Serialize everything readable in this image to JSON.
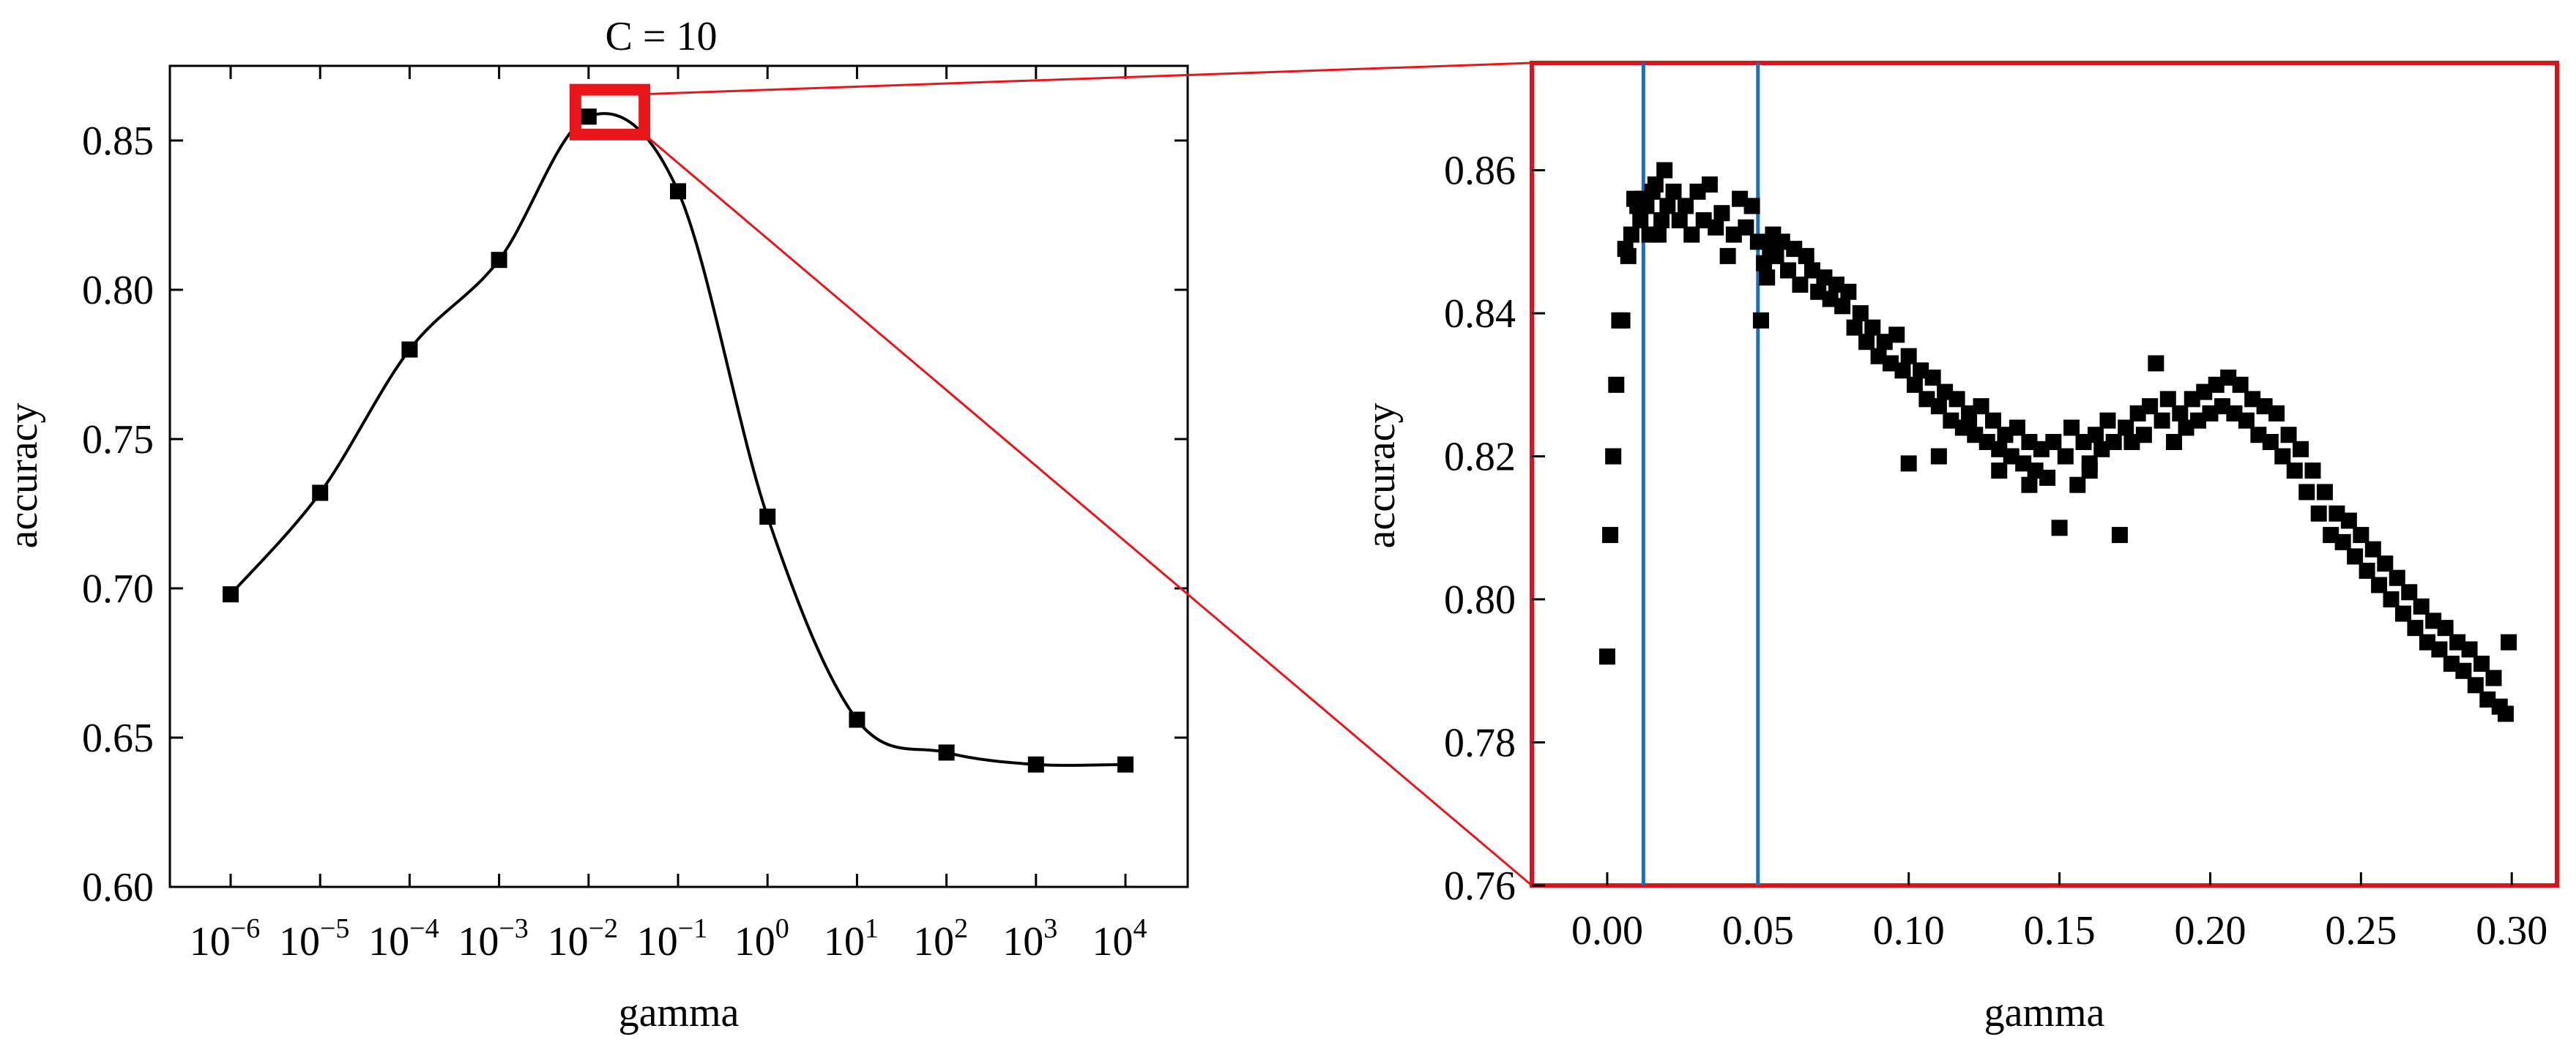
{
  "chart_data": [
    {
      "type": "line",
      "title": "C = 10",
      "xlabel": "gamma",
      "ylabel": "accuracy",
      "x_scale": "log",
      "x_tick_exponents": [
        -6,
        -5,
        -4,
        -3,
        -2,
        -1,
        0,
        1,
        2,
        3,
        4
      ],
      "ylim": [
        0.6,
        0.875
      ],
      "y_ticks": [
        "0.60",
        "0.65",
        "0.70",
        "0.75",
        "0.80",
        "0.85"
      ],
      "y_tick_values": [
        0.6,
        0.65,
        0.7,
        0.75,
        0.8,
        0.85
      ],
      "grid": false,
      "points": [
        {
          "x": 1e-06,
          "y": 0.698
        },
        {
          "x": 1e-05,
          "y": 0.732
        },
        {
          "x": 0.0001,
          "y": 0.78
        },
        {
          "x": 0.001,
          "y": 0.81
        },
        {
          "x": 0.01,
          "y": 0.858
        },
        {
          "x": 0.1,
          "y": 0.833
        },
        {
          "x": 1.0,
          "y": 0.724
        },
        {
          "x": 10.0,
          "y": 0.656
        },
        {
          "x": 100.0,
          "y": 0.645
        },
        {
          "x": 1000.0,
          "y": 0.641
        },
        {
          "x": 10000.0,
          "y": 0.641
        }
      ],
      "highlight_box": {
        "x_range": [
          0.01,
          0.03
        ],
        "y_range": [
          0.852,
          0.867
        ],
        "color": "#e8161b"
      }
    },
    {
      "type": "scatter",
      "title": "",
      "xlabel": "gamma",
      "ylabel": "accuracy",
      "xlim": [
        -0.025,
        0.315
      ],
      "ylim": [
        0.76,
        0.875
      ],
      "x_ticks": [
        "0.00",
        "0.05",
        "0.10",
        "0.15",
        "0.20",
        "0.25",
        "0.30"
      ],
      "x_tick_values": [
        0.0,
        0.05,
        0.1,
        0.15,
        0.2,
        0.25,
        0.3
      ],
      "y_ticks": [
        "0.76",
        "0.78",
        "0.80",
        "0.82",
        "0.84",
        "0.86"
      ],
      "y_tick_values": [
        0.76,
        0.78,
        0.8,
        0.82,
        0.84,
        0.86
      ],
      "grid": false,
      "frame_color": "#d9141a",
      "vertical_lines": [
        {
          "x": 0.012,
          "color": "#1f6eaf"
        },
        {
          "x": 0.05,
          "color": "#1f6eaf"
        }
      ],
      "points": [
        [
          0.0,
          0.792
        ],
        [
          0.001,
          0.809
        ],
        [
          0.002,
          0.82
        ],
        [
          0.003,
          0.83
        ],
        [
          0.004,
          0.839
        ],
        [
          0.005,
          0.839
        ],
        [
          0.006,
          0.849
        ],
        [
          0.007,
          0.848
        ],
        [
          0.008,
          0.851
        ],
        [
          0.009,
          0.856
        ],
        [
          0.01,
          0.855
        ],
        [
          0.011,
          0.853
        ],
        [
          0.012,
          0.856
        ],
        [
          0.013,
          0.855
        ],
        [
          0.014,
          0.851
        ],
        [
          0.015,
          0.857
        ],
        [
          0.016,
          0.858
        ],
        [
          0.017,
          0.851
        ],
        [
          0.018,
          0.853
        ],
        [
          0.019,
          0.86
        ],
        [
          0.02,
          0.855
        ],
        [
          0.022,
          0.857
        ],
        [
          0.024,
          0.853
        ],
        [
          0.026,
          0.855
        ],
        [
          0.028,
          0.851
        ],
        [
          0.03,
          0.857
        ],
        [
          0.032,
          0.853
        ],
        [
          0.034,
          0.858
        ],
        [
          0.036,
          0.852
        ],
        [
          0.038,
          0.854
        ],
        [
          0.04,
          0.848
        ],
        [
          0.042,
          0.851
        ],
        [
          0.044,
          0.856
        ],
        [
          0.046,
          0.852
        ],
        [
          0.048,
          0.855
        ],
        [
          0.05,
          0.85
        ],
        [
          0.051,
          0.839
        ],
        [
          0.052,
          0.847
        ],
        [
          0.053,
          0.845
        ],
        [
          0.054,
          0.849
        ],
        [
          0.055,
          0.851
        ],
        [
          0.056,
          0.848
        ],
        [
          0.058,
          0.85
        ],
        [
          0.06,
          0.846
        ],
        [
          0.062,
          0.849
        ],
        [
          0.064,
          0.844
        ],
        [
          0.066,
          0.848
        ],
        [
          0.068,
          0.846
        ],
        [
          0.07,
          0.843
        ],
        [
          0.072,
          0.845
        ],
        [
          0.074,
          0.842
        ],
        [
          0.076,
          0.844
        ],
        [
          0.078,
          0.841
        ],
        [
          0.08,
          0.843
        ],
        [
          0.082,
          0.838
        ],
        [
          0.084,
          0.84
        ],
        [
          0.086,
          0.836
        ],
        [
          0.088,
          0.838
        ],
        [
          0.09,
          0.834
        ],
        [
          0.092,
          0.836
        ],
        [
          0.094,
          0.833
        ],
        [
          0.096,
          0.837
        ],
        [
          0.098,
          0.832
        ],
        [
          0.1,
          0.834
        ],
        [
          0.102,
          0.83
        ],
        [
          0.104,
          0.832
        ],
        [
          0.106,
          0.828
        ],
        [
          0.108,
          0.831
        ],
        [
          0.11,
          0.827
        ],
        [
          0.112,
          0.829
        ],
        [
          0.114,
          0.825
        ],
        [
          0.116,
          0.828
        ],
        [
          0.118,
          0.824
        ],
        [
          0.12,
          0.826
        ],
        [
          0.122,
          0.823
        ],
        [
          0.124,
          0.827
        ],
        [
          0.126,
          0.822
        ],
        [
          0.128,
          0.825
        ],
        [
          0.13,
          0.821
        ],
        [
          0.132,
          0.823
        ],
        [
          0.134,
          0.82
        ],
        [
          0.136,
          0.824
        ],
        [
          0.138,
          0.819
        ],
        [
          0.14,
          0.822
        ],
        [
          0.142,
          0.818
        ],
        [
          0.144,
          0.821
        ],
        [
          0.146,
          0.817
        ],
        [
          0.148,
          0.822
        ],
        [
          0.15,
          0.81
        ],
        [
          0.152,
          0.82
        ],
        [
          0.154,
          0.824
        ],
        [
          0.156,
          0.816
        ],
        [
          0.158,
          0.822
        ],
        [
          0.16,
          0.819
        ],
        [
          0.162,
          0.823
        ],
        [
          0.164,
          0.821
        ],
        [
          0.166,
          0.825
        ],
        [
          0.168,
          0.822
        ],
        [
          0.17,
          0.809
        ],
        [
          0.172,
          0.824
        ],
        [
          0.174,
          0.822
        ],
        [
          0.176,
          0.826
        ],
        [
          0.178,
          0.823
        ],
        [
          0.18,
          0.827
        ],
        [
          0.182,
          0.833
        ],
        [
          0.184,
          0.825
        ],
        [
          0.186,
          0.828
        ],
        [
          0.188,
          0.822
        ],
        [
          0.19,
          0.826
        ],
        [
          0.192,
          0.824
        ],
        [
          0.194,
          0.828
        ],
        [
          0.196,
          0.825
        ],
        [
          0.198,
          0.829
        ],
        [
          0.2,
          0.826
        ],
        [
          0.202,
          0.83
        ],
        [
          0.204,
          0.827
        ],
        [
          0.206,
          0.831
        ],
        [
          0.208,
          0.826
        ],
        [
          0.21,
          0.83
        ],
        [
          0.212,
          0.825
        ],
        [
          0.214,
          0.828
        ],
        [
          0.216,
          0.823
        ],
        [
          0.218,
          0.827
        ],
        [
          0.22,
          0.822
        ],
        [
          0.222,
          0.826
        ],
        [
          0.224,
          0.82
        ],
        [
          0.226,
          0.823
        ],
        [
          0.228,
          0.818
        ],
        [
          0.23,
          0.821
        ],
        [
          0.232,
          0.815
        ],
        [
          0.234,
          0.818
        ],
        [
          0.236,
          0.812
        ],
        [
          0.238,
          0.815
        ],
        [
          0.24,
          0.809
        ],
        [
          0.242,
          0.812
        ],
        [
          0.244,
          0.808
        ],
        [
          0.246,
          0.811
        ],
        [
          0.248,
          0.806
        ],
        [
          0.25,
          0.809
        ],
        [
          0.252,
          0.804
        ],
        [
          0.254,
          0.807
        ],
        [
          0.256,
          0.802
        ],
        [
          0.258,
          0.805
        ],
        [
          0.26,
          0.8
        ],
        [
          0.262,
          0.803
        ],
        [
          0.264,
          0.798
        ],
        [
          0.266,
          0.801
        ],
        [
          0.268,
          0.796
        ],
        [
          0.27,
          0.799
        ],
        [
          0.272,
          0.794
        ],
        [
          0.274,
          0.797
        ],
        [
          0.276,
          0.793
        ],
        [
          0.278,
          0.796
        ],
        [
          0.28,
          0.791
        ],
        [
          0.282,
          0.794
        ],
        [
          0.284,
          0.79
        ],
        [
          0.286,
          0.793
        ],
        [
          0.288,
          0.788
        ],
        [
          0.29,
          0.791
        ],
        [
          0.292,
          0.786
        ],
        [
          0.294,
          0.789
        ],
        [
          0.296,
          0.785
        ],
        [
          0.298,
          0.784
        ],
        [
          0.299,
          0.794
        ],
        [
          0.1,
          0.819
        ],
        [
          0.11,
          0.82
        ],
        [
          0.12,
          0.824
        ],
        [
          0.13,
          0.818
        ],
        [
          0.14,
          0.816
        ],
        [
          0.16,
          0.818
        ]
      ]
    }
  ]
}
